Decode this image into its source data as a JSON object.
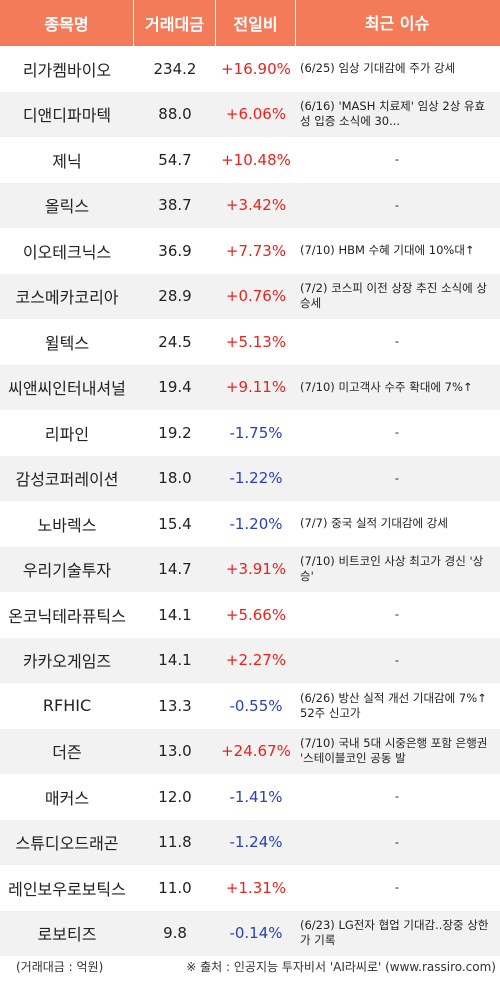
{
  "header": {
    "name": "종목명",
    "volume": "거래대금",
    "change": "전일비",
    "issue": "최근 이슈"
  },
  "colors": {
    "header_bg": "#f47b5a",
    "up": "#e8231d",
    "down": "#2a3fb8",
    "row_alt": "#f2f2f2"
  },
  "rows": [
    {
      "name": "리가켐바이오",
      "volume": "234.2",
      "change": "+16.90%",
      "direction": "up",
      "issue": "(6/25) 임상 기대감에 주가 강세"
    },
    {
      "name": "디앤디파마텍",
      "volume": "88.0",
      "change": "+6.06%",
      "direction": "up",
      "issue": "(6/16) 'MASH 치료제' 임상 2상 유효성 입증 소식에 30..."
    },
    {
      "name": "제닉",
      "volume": "54.7",
      "change": "+10.48%",
      "direction": "up",
      "issue": "-"
    },
    {
      "name": "올릭스",
      "volume": "38.7",
      "change": "+3.42%",
      "direction": "up",
      "issue": "-"
    },
    {
      "name": "이오테크닉스",
      "volume": "36.9",
      "change": "+7.73%",
      "direction": "up",
      "issue": "(7/10) HBM 수혜 기대에 10%대↑"
    },
    {
      "name": "코스메카코리아",
      "volume": "28.9",
      "change": "+0.76%",
      "direction": "up",
      "issue": "(7/2) 코스피 이전 상장 추진 소식에 상승세"
    },
    {
      "name": "윌텍스",
      "volume": "24.5",
      "change": "+5.13%",
      "direction": "up",
      "issue": "-"
    },
    {
      "name": "씨앤씨인터내셔널",
      "volume": "19.4",
      "change": "+9.11%",
      "direction": "up",
      "issue": "(7/10) 미고객사 수주 확대에 7%↑"
    },
    {
      "name": "리파인",
      "volume": "19.2",
      "change": "-1.75%",
      "direction": "down",
      "issue": "-"
    },
    {
      "name": "감성코퍼레이션",
      "volume": "18.0",
      "change": "-1.22%",
      "direction": "down",
      "issue": "-"
    },
    {
      "name": "노바렉스",
      "volume": "15.4",
      "change": "-1.20%",
      "direction": "down",
      "issue": "(7/7) 중국 실적 기대감에 강세"
    },
    {
      "name": "우리기술투자",
      "volume": "14.7",
      "change": "+3.91%",
      "direction": "up",
      "issue": "(7/10) 비트코인 사상 최고가 경신 '상승'"
    },
    {
      "name": "온코닉테라퓨틱스",
      "volume": "14.1",
      "change": "+5.66%",
      "direction": "up",
      "issue": "-"
    },
    {
      "name": "카카오게임즈",
      "volume": "14.1",
      "change": "+2.27%",
      "direction": "up",
      "issue": "-"
    },
    {
      "name": "RFHIC",
      "volume": "13.3",
      "change": "-0.55%",
      "direction": "down",
      "issue": "(6/26) 방산 실적 개선 기대감에 7%↑52주 신고가"
    },
    {
      "name": "더즌",
      "volume": "13.0",
      "change": "+24.67%",
      "direction": "up",
      "issue": "(7/10) 국내 5대 시중은행 포함 은행권 '스테이블코인 공동 발"
    },
    {
      "name": "매커스",
      "volume": "12.0",
      "change": "-1.41%",
      "direction": "down",
      "issue": "-"
    },
    {
      "name": "스튜디오드래곤",
      "volume": "11.8",
      "change": "-1.24%",
      "direction": "down",
      "issue": "-"
    },
    {
      "name": "레인보우로보틱스",
      "volume": "11.0",
      "change": "+1.31%",
      "direction": "up",
      "issue": "-"
    },
    {
      "name": "로보티즈",
      "volume": "9.8",
      "change": "-0.14%",
      "direction": "down",
      "issue": "(6/23) LG전자 협업 기대감..장중 상한가 기록"
    }
  ],
  "footer": {
    "unit": "(거래대금 : 억원)",
    "source": "※ 출처 : 인공지능 투자비서 'AI라씨로' (www.rassiro.com)"
  }
}
